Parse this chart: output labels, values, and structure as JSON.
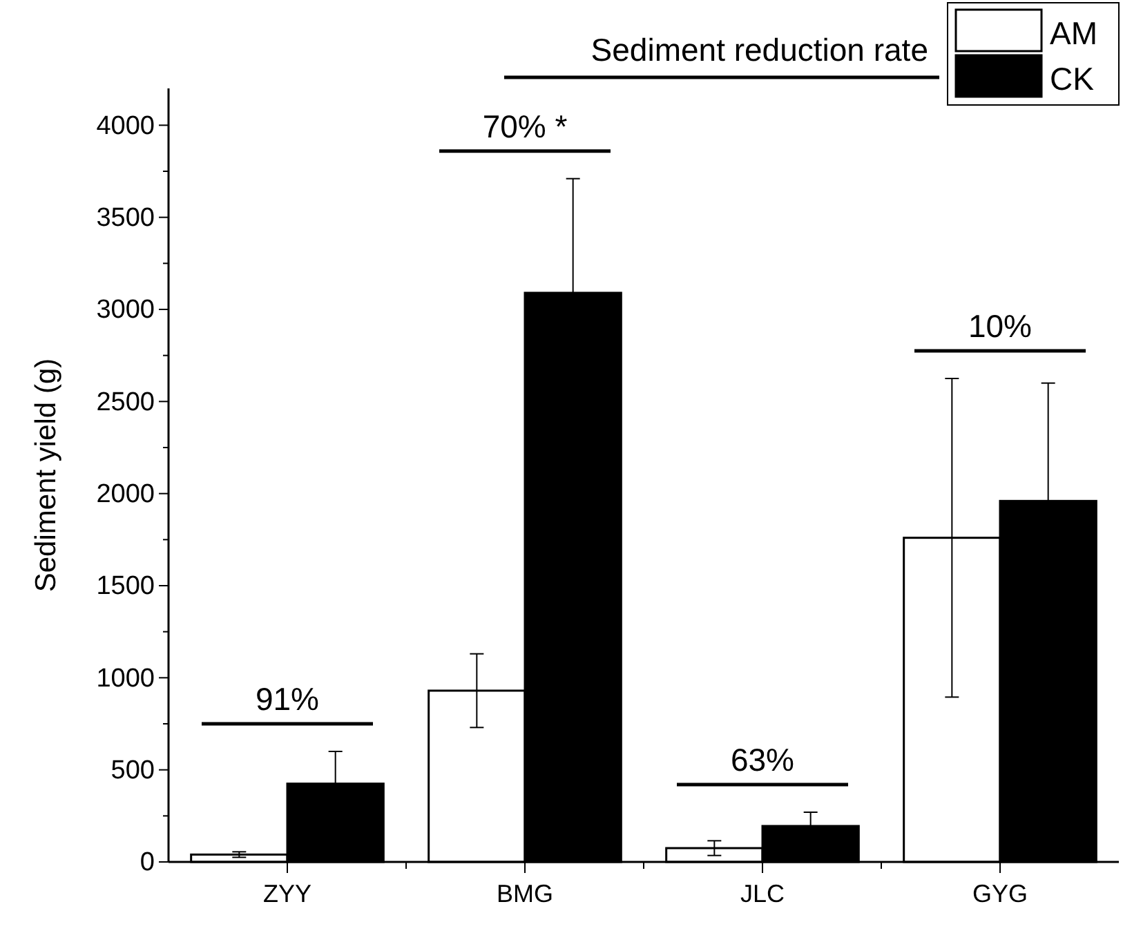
{
  "chart_data": {
    "type": "bar",
    "ylabel": "Sediment yield (g)",
    "categories": [
      "ZYY",
      "BMG",
      "JLC",
      "GYG"
    ],
    "series": [
      {
        "name": "AM",
        "color": "#ffffff",
        "values": [
          40,
          930,
          75,
          1760
        ],
        "errors": [
          15,
          200,
          40,
          865
        ]
      },
      {
        "name": "CK",
        "color": "#000000",
        "values": [
          425,
          3090,
          195,
          1960
        ],
        "errors": [
          175,
          620,
          75,
          640
        ]
      }
    ],
    "ylim": [
      0,
      4200
    ],
    "yticks": [
      0,
      500,
      1000,
      1500,
      2000,
      2500,
      3000,
      3500,
      4000
    ],
    "annotations": [
      "Sediment reduction rate",
      "91%",
      "70% *",
      "63%",
      "10%"
    ],
    "legend": "top right",
    "grid": false
  }
}
